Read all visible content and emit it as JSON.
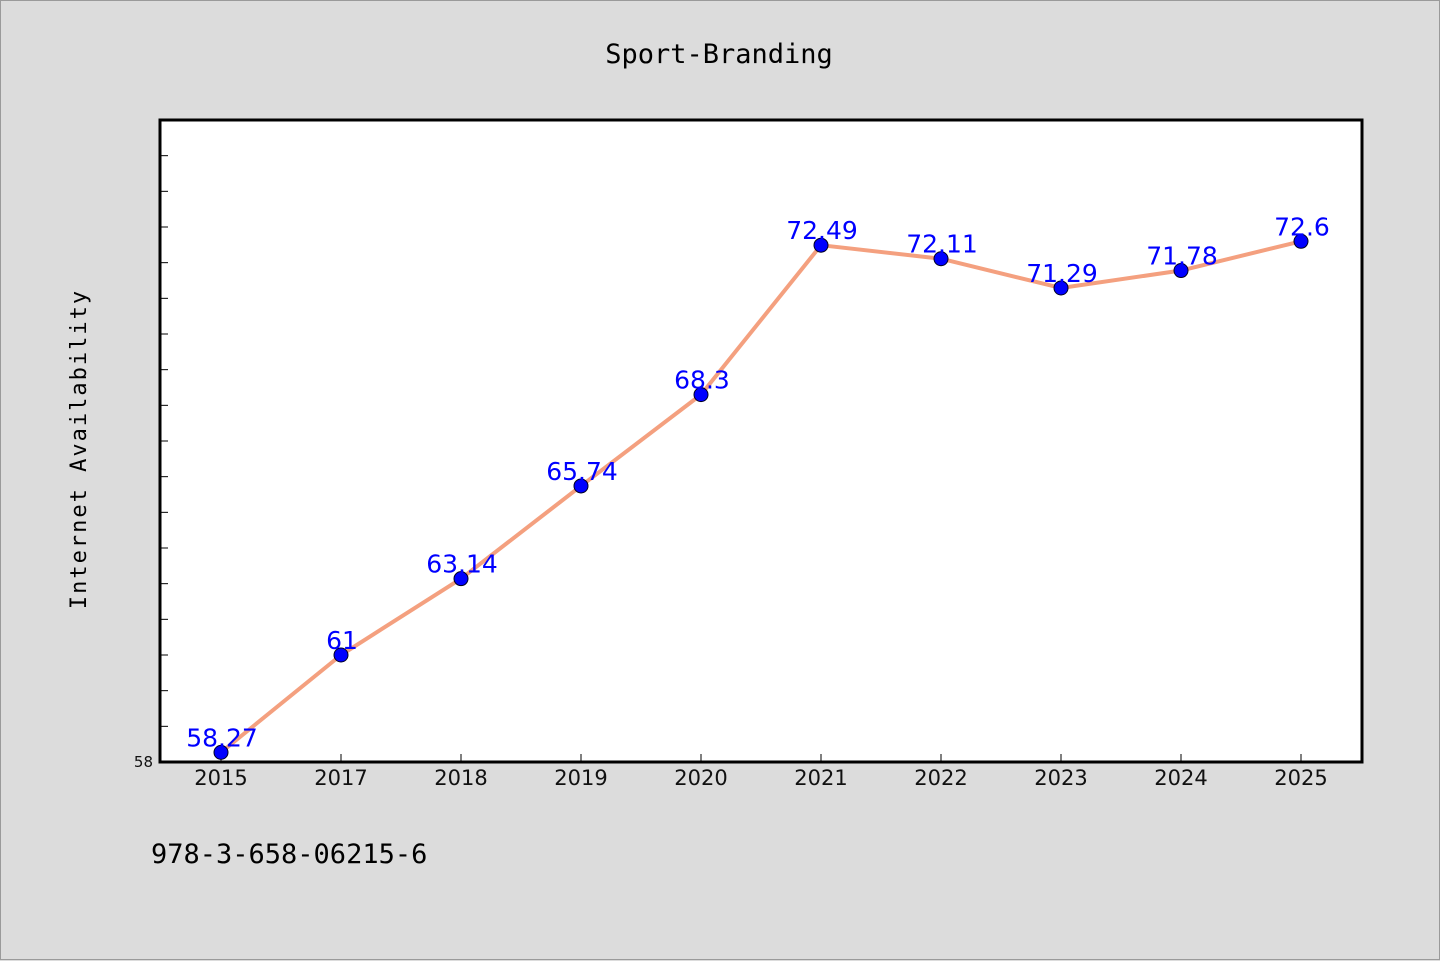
{
  "chart_data": {
    "type": "line",
    "title": "Sport-Branding",
    "xlabel": "",
    "ylabel": "Internet Availability",
    "categories": [
      "2015",
      "2017",
      "2018",
      "2019",
      "2020",
      "2021",
      "2022",
      "2023",
      "2024",
      "2025"
    ],
    "series": [
      {
        "values": [
          58.27,
          61,
          63.14,
          65.74,
          68.3,
          72.49,
          72.11,
          71.29,
          71.78,
          72.6
        ],
        "labels": [
          "58.27",
          "61",
          "63.14",
          "65.74",
          "68.3",
          "72.49",
          "72.11",
          "71.29",
          "71.78",
          "72.6"
        ]
      }
    ],
    "ylim": [
      58,
      76
    ],
    "y_tick_labels": [
      "58"
    ],
    "line_color": "#f4a07f",
    "marker_color": "#0000ff",
    "label_color": "#0000ff",
    "grid": false
  },
  "footer": {
    "isbn": "978-3-658-06215-6"
  }
}
